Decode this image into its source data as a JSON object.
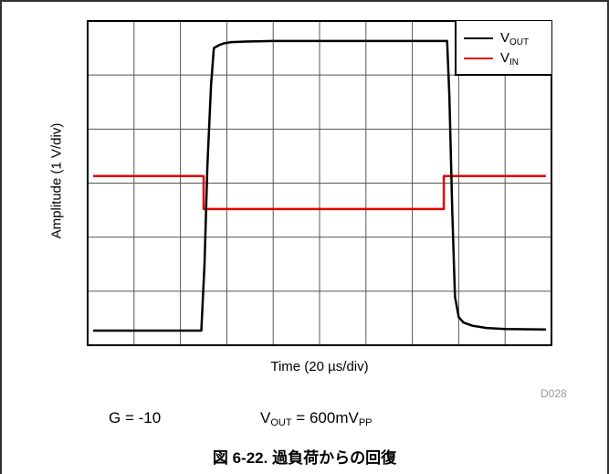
{
  "chart_data": {
    "type": "line",
    "title": "",
    "xlabel": "Time (20 µs/div)",
    "ylabel": "Amplitude (1 V/div)",
    "x_divisions": 10,
    "y_divisions": 6,
    "grid": true,
    "legend_position": "top-right",
    "x_unit": "div",
    "y_unit": "div",
    "xlim": [
      0,
      10
    ],
    "ylim": [
      0,
      6
    ],
    "series": [
      {
        "name": "VOUT",
        "legend_main": "V",
        "legend_sub": "OUT",
        "color": "#000000",
        "x": [
          0.12,
          2.45,
          2.52,
          2.58,
          2.66,
          2.72,
          2.85,
          2.95,
          3.1,
          3.4,
          4.0,
          6.0,
          7.6,
          7.75,
          7.8,
          7.86,
          7.92,
          8.0,
          8.1,
          8.3,
          8.6,
          9.0,
          9.88
        ],
        "y": [
          0.27,
          0.27,
          1.5,
          3.3,
          4.8,
          5.5,
          5.56,
          5.59,
          5.61,
          5.62,
          5.63,
          5.63,
          5.63,
          5.63,
          4.6,
          2.5,
          0.9,
          0.52,
          0.42,
          0.36,
          0.32,
          0.3,
          0.29
        ]
      },
      {
        "name": "VIN",
        "legend_main": "V",
        "legend_sub": "IN",
        "color": "#e00000",
        "x": [
          0.12,
          2.5,
          2.5,
          7.68,
          7.68,
          9.88
        ],
        "y": [
          3.13,
          3.13,
          2.52,
          2.52,
          3.13,
          3.13
        ]
      }
    ]
  },
  "figure_id": "D028",
  "conditions": {
    "gain": "G = -10",
    "vout_main": "V",
    "vout_sub": "OUT",
    "vout_value": " = 600mV",
    "vout_unit_sub": "PP"
  },
  "caption": "図 6-22. 過負荷からの回復"
}
